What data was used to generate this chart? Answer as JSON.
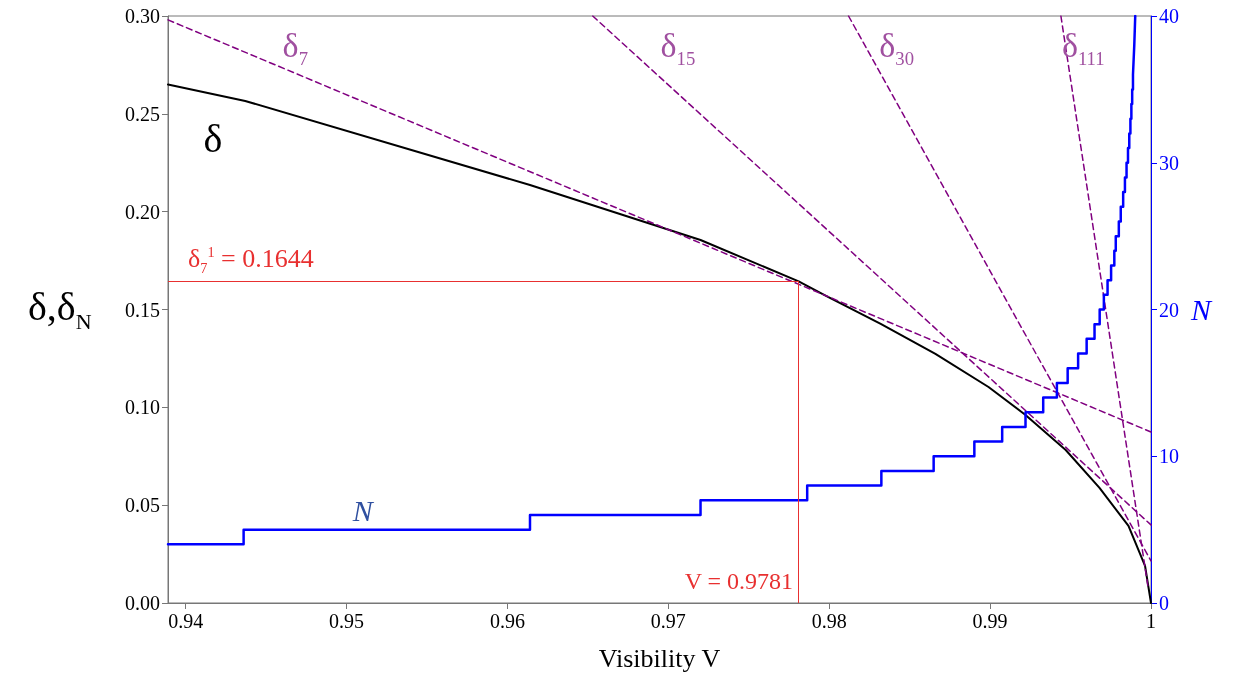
{
  "chart_data": {
    "type": "line",
    "xlabel": "Visibility V",
    "ylabel": "δ,δ$_{N}$",
    "y2label": "N",
    "xlim": [
      0.9389,
      1
    ],
    "xticks": [
      0.94,
      0.95,
      0.96,
      0.97,
      0.98,
      0.99,
      1
    ],
    "ylim": [
      0,
      0.3
    ],
    "yticks": [
      {
        "value": 0,
        "label": "0.00"
      },
      0.05,
      {
        "value": 0.1,
        "label": "0.10"
      },
      0.15,
      {
        "value": 0.2,
        "label": "0.20"
      },
      0.25,
      {
        "value": 0.3,
        "label": "0.30"
      }
    ],
    "y2lim": [
      0,
      40
    ],
    "y2ticks": [
      0,
      10,
      20,
      30,
      40
    ],
    "grid": false,
    "legend": false,
    "marker": "none",
    "series": [
      {
        "name": "δ",
        "color": "#000000",
        "x": [
          0.9389,
          0.9437,
          0.9614,
          0.972,
          0.9781,
          0.9798,
          0.9832,
          0.9866,
          0.9899,
          0.9922,
          0.9947,
          0.9968,
          0.9986,
          0.99963,
          1
        ],
        "values": [
          0.265,
          0.2566,
          0.2136,
          0.1855,
          0.1644,
          0.157,
          0.1426,
          0.1273,
          0.1104,
          0.0961,
          0.0782,
          0.0588,
          0.0394,
          0.019,
          0
        ]
      },
      {
        "name": "N",
        "type": "step",
        "axis": "y2",
        "color": "#0000ff",
        "x": [
          0.9389,
          0.9436,
          0.9614,
          0.972,
          0.97863,
          0.98324,
          0.98649,
          0.98902,
          0.99075,
          0.9922,
          0.9933,
          0.99415,
          0.99482,
          0.99547,
          0.996,
          0.99649,
          0.99681,
          0.99707,
          0.9973,
          0.99752,
          0.99772,
          0.99781,
          0.998,
          0.99812,
          0.99827,
          0.99838,
          0.99848,
          0.99857,
          0.99865,
          0.99872,
          0.99878,
          0.99883,
          0.99888,
          0.99892,
          0.99896,
          0.99899,
          0.99902
        ],
        "values": [
          4,
          5,
          6,
          7,
          8,
          9,
          10,
          11,
          12,
          13,
          14,
          15,
          16,
          17,
          18,
          19,
          20,
          21,
          22,
          23,
          24,
          25,
          26,
          27,
          28,
          29,
          30,
          31,
          32,
          33,
          34,
          35,
          36,
          37,
          38,
          39,
          40
        ]
      },
      {
        "name": "δ$_{7}$",
        "line_style": "dashed",
        "color": "#800080",
        "x": [
          0.9389,
          1
        ],
        "values": [
          0.298,
          0.0874
        ]
      },
      {
        "name": "δ$_{15}$",
        "line_style": "dashed",
        "color": "#800080",
        "x": [
          0.9653,
          1
        ],
        "values": [
          0.3,
          0.0399
        ]
      },
      {
        "name": "δ$_{30}$",
        "line_style": "dashed",
        "color": "#800080",
        "x": [
          0.9812,
          1
        ],
        "values": [
          0.3,
          0.0215
        ]
      },
      {
        "name": "δ$_{111}$",
        "line_style": "dashed",
        "color": "#800080",
        "x": [
          0.9944,
          0.9998
        ],
        "values": [
          0.3,
          0.009
        ]
      }
    ],
    "ref_lines": [
      {
        "axis": "y",
        "value": 0.1644,
        "label": "δ$_{7}$$^{1}$ = 0.1644",
        "color": "#e83030"
      },
      {
        "axis": "x",
        "value": 0.9781,
        "label": "V = 0.9781",
        "color": "#e83030"
      }
    ]
  }
}
